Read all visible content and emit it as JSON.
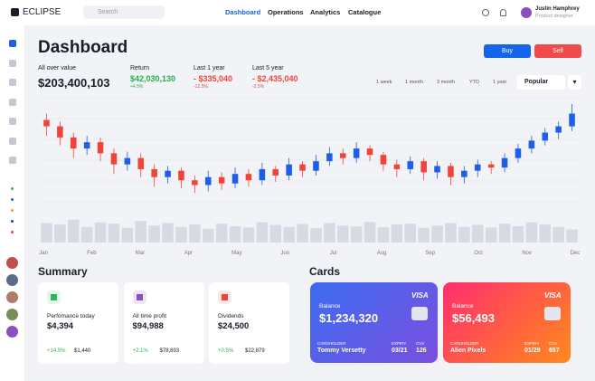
{
  "header": {
    "logo": "ECLIPSE",
    "search": "Search",
    "nav": [
      "Dashboard",
      "Operations",
      "Analytics",
      "Catalogue"
    ],
    "user_name": "Justin Hamphrey",
    "user_role": "Product designer"
  },
  "dashboard": {
    "title": "Dashboard",
    "buy": "Buy",
    "sell": "Sell",
    "stats": [
      {
        "label": "All over value",
        "value": "$203,400,103"
      },
      {
        "label": "Return",
        "value": "$42,030,130",
        "change": "+4.5%"
      },
      {
        "label": "Last 1 year",
        "value": "- $335,040",
        "change": "-12.5%"
      },
      {
        "label": "Last 5 year",
        "value": "- $2,435,040",
        "change": "-2.5%"
      }
    ],
    "ranges": [
      "1 week",
      "1 month",
      "3 month",
      "YTD",
      "1 year"
    ],
    "sort": "Popular"
  },
  "chart_data": {
    "type": "candlestick",
    "up_color": "#1f5ee8",
    "down_color": "#f0443a",
    "volume_color": "#d7d9e3",
    "ylim": [
      25,
      90
    ],
    "vlim": [
      0,
      100
    ],
    "x_labels": [
      "Jan",
      "Feb",
      "Mar",
      "Apr",
      "May",
      "Jun",
      "Jul",
      "Aug",
      "Sep",
      "Oct",
      "Nov",
      "Dec"
    ],
    "open": [
      76,
      72,
      65,
      58,
      62,
      55,
      48,
      52,
      45,
      40,
      44,
      38,
      35,
      40,
      36,
      42,
      38,
      45,
      41,
      48,
      44,
      50,
      55,
      52,
      58,
      54,
      48,
      45,
      50,
      43,
      47,
      40,
      44,
      48,
      46,
      52,
      58,
      63,
      68,
      72
    ],
    "close": [
      72,
      65,
      58,
      62,
      55,
      48,
      52,
      45,
      40,
      44,
      38,
      35,
      40,
      36,
      42,
      38,
      45,
      41,
      48,
      44,
      50,
      55,
      52,
      58,
      54,
      48,
      45,
      50,
      43,
      47,
      40,
      44,
      48,
      46,
      52,
      58,
      63,
      68,
      72,
      80
    ],
    "high": [
      80,
      75,
      68,
      66,
      65,
      58,
      56,
      55,
      48,
      47,
      46,
      41,
      44,
      43,
      46,
      45,
      49,
      47,
      52,
      50,
      54,
      59,
      58,
      62,
      60,
      56,
      51,
      53,
      52,
      50,
      49,
      47,
      51,
      50,
      55,
      61,
      66,
      71,
      75,
      86
    ],
    "low": [
      66,
      60,
      52,
      54,
      50,
      42,
      44,
      40,
      34,
      36,
      33,
      30,
      31,
      32,
      33,
      34,
      35,
      37,
      38,
      40,
      41,
      47,
      48,
      49,
      50,
      44,
      40,
      42,
      38,
      39,
      35,
      36,
      40,
      42,
      43,
      49,
      55,
      60,
      64,
      69
    ],
    "volume": [
      60,
      55,
      70,
      48,
      62,
      58,
      45,
      66,
      52,
      60,
      48,
      55,
      42,
      58,
      50,
      46,
      62,
      54,
      48,
      57,
      44,
      60,
      52,
      49,
      63,
      47,
      55,
      58,
      45,
      52,
      60,
      48,
      54,
      46,
      58,
      50,
      62,
      55,
      48,
      40
    ]
  },
  "summary": {
    "title": "Summary",
    "items": [
      {
        "label": "Perfomance today",
        "value": "$4,394",
        "change": "+14.5%",
        "extra": "$1,440"
      },
      {
        "label": "All time profit",
        "value": "$94,988",
        "change": "+2.1%",
        "extra": "$78,893"
      },
      {
        "label": "Dividends",
        "value": "$24,500",
        "change": "+0.5%",
        "extra": "$22,879"
      }
    ]
  },
  "cards": {
    "title": "Cards",
    "items": [
      {
        "brand": "VISA",
        "balance_label": "Balance",
        "balance": "$1,234,320",
        "holder_label": "CARDHOLDER",
        "holder": "Tommy Versetty",
        "expiry_label": "EXPIRY",
        "expiry": "03/21",
        "cvv_label": "CVV",
        "cvv": "126"
      },
      {
        "brand": "VISA",
        "balance_label": "Balance",
        "balance": "$56,493",
        "holder_label": "CARDHOLDER",
        "holder": "Alien Pixels",
        "expiry_label": "EXPIRY",
        "expiry": "01/29",
        "cvv_label": "CVV",
        "cvv": "657"
      }
    ]
  }
}
